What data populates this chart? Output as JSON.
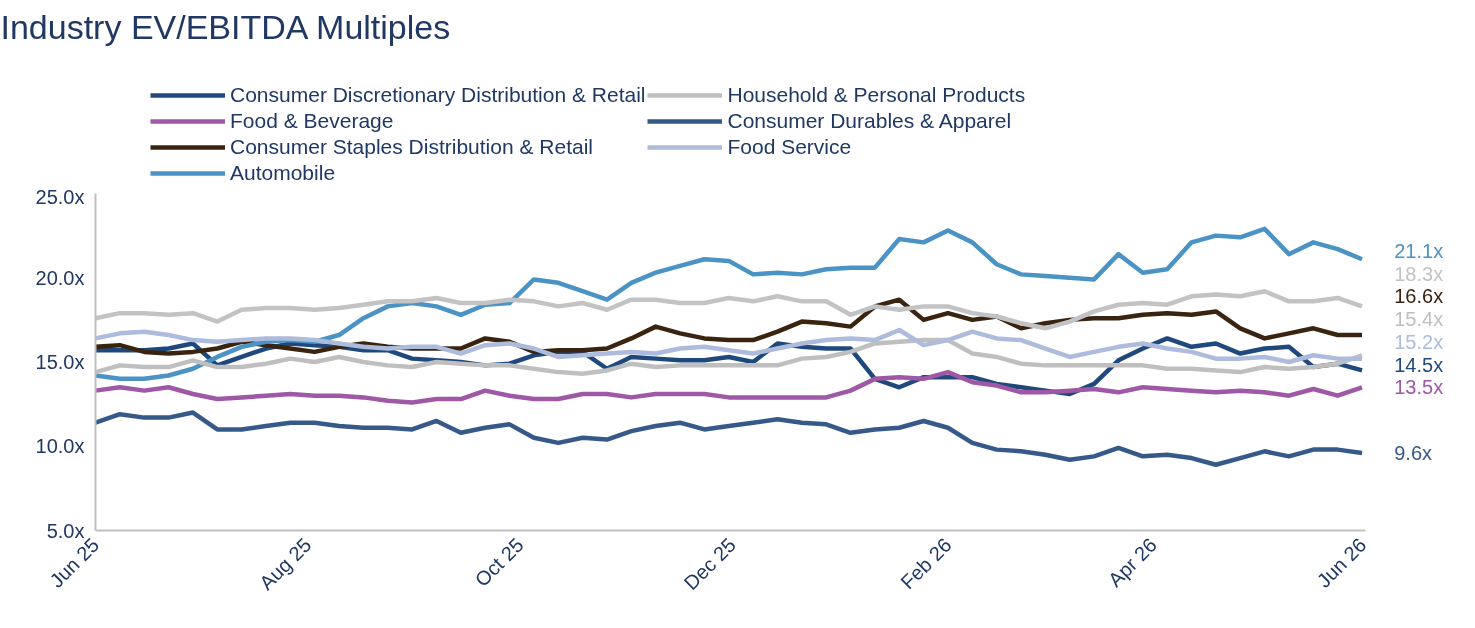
{
  "chart_data": {
    "type": "line",
    "title": "Industry EV/EBITDA Multiples",
    "x": [
      "2025-06-01",
      "2025-06-08",
      "2025-06-15",
      "2025-06-22",
      "2025-06-29",
      "2025-07-06",
      "2025-07-13",
      "2025-07-20",
      "2025-07-27",
      "2025-08-03",
      "2025-08-10",
      "2025-08-17",
      "2025-08-24",
      "2025-08-31",
      "2025-09-07",
      "2025-09-14",
      "2025-09-21",
      "2025-09-28",
      "2025-10-05",
      "2025-10-12",
      "2025-10-19",
      "2025-10-26",
      "2025-11-02",
      "2025-11-09",
      "2025-11-16",
      "2025-11-23",
      "2025-11-30",
      "2025-12-07",
      "2025-12-14",
      "2025-12-21",
      "2025-12-28",
      "2026-01-04",
      "2026-01-11",
      "2026-01-18",
      "2026-01-25",
      "2026-02-01",
      "2026-02-08",
      "2026-02-15",
      "2026-02-22",
      "2026-03-01",
      "2026-03-08",
      "2026-03-15",
      "2026-03-22",
      "2026-03-29",
      "2026-04-05",
      "2026-04-12",
      "2026-04-19",
      "2026-04-26",
      "2026-05-03",
      "2026-05-10",
      "2026-05-17",
      "2026-05-24",
      "2026-05-31"
    ],
    "series": [
      {
        "name": "Consumer Discretionary Distribution & Retail",
        "color": "#1f497d",
        "values": [
          15.7,
          15.7,
          15.7,
          15.8,
          16.1,
          14.8,
          15.3,
          15.8,
          16.1,
          16.0,
          15.9,
          15.7,
          15.7,
          15.2,
          15.1,
          15.0,
          14.8,
          14.9,
          15.4,
          15.6,
          15.6,
          14.6,
          15.3,
          15.2,
          15.1,
          15.1,
          15.3,
          15.0,
          16.1,
          15.9,
          15.8,
          15.8,
          14.0,
          13.5,
          14.1,
          14.1,
          14.1,
          13.7,
          13.5,
          13.3,
          13.1,
          13.7,
          15.1,
          15.8,
          16.4,
          15.9,
          16.1,
          15.5,
          15.8,
          15.9,
          14.7,
          14.9,
          14.5
        ],
        "value_labels": [
          null,
          null,
          null,
          null,
          null,
          null,
          null,
          null,
          null,
          null,
          null,
          null,
          null,
          null,
          null,
          null,
          null,
          null,
          null,
          null,
          null,
          null,
          null,
          null,
          null,
          null,
          null,
          null,
          null,
          null,
          null,
          null,
          null,
          null,
          null,
          null,
          null,
          null,
          null,
          null,
          null,
          null,
          null,
          null,
          null,
          null,
          null,
          null,
          null,
          null,
          null,
          null,
          "14.5x"
        ]
      },
      {
        "name": "Food & Beverage",
        "color": "#9e58a6",
        "values": [
          13.3,
          13.5,
          13.3,
          13.5,
          13.1,
          12.8,
          12.9,
          13.0,
          13.1,
          13.0,
          13.0,
          12.9,
          12.7,
          12.6,
          12.8,
          12.8,
          13.3,
          13.0,
          12.8,
          12.8,
          13.1,
          13.1,
          12.9,
          13.1,
          13.1,
          13.1,
          12.9,
          12.9,
          12.9,
          12.9,
          12.9,
          13.3,
          14.0,
          14.1,
          14.0,
          14.4,
          13.8,
          13.6,
          13.2,
          13.2,
          13.3,
          13.4,
          13.2,
          13.5,
          13.4,
          13.3,
          13.2,
          13.3,
          13.2,
          13.0,
          13.4,
          13.0,
          13.5
        ],
        "value_labels": [
          null,
          null,
          null,
          null,
          null,
          null,
          null,
          null,
          null,
          null,
          null,
          null,
          null,
          null,
          null,
          null,
          null,
          null,
          null,
          null,
          null,
          null,
          null,
          null,
          null,
          null,
          null,
          null,
          null,
          null,
          null,
          null,
          null,
          null,
          null,
          null,
          null,
          null,
          null,
          null,
          null,
          null,
          null,
          null,
          null,
          null,
          null,
          null,
          null,
          null,
          null,
          null,
          "13.5x"
        ]
      },
      {
        "name": "Consumer Staples Distribution & Retail",
        "color": "#3a2410",
        "values": [
          15.9,
          16.0,
          15.6,
          15.5,
          15.6,
          15.8,
          16.2,
          16.0,
          15.8,
          15.6,
          15.9,
          16.1,
          15.9,
          15.8,
          15.8,
          15.8,
          16.4,
          16.2,
          15.6,
          15.7,
          15.7,
          15.8,
          16.4,
          17.1,
          16.7,
          16.4,
          16.3,
          16.3,
          16.8,
          17.4,
          17.3,
          17.1,
          18.3,
          18.7,
          17.5,
          17.9,
          17.5,
          17.7,
          17.0,
          17.3,
          17.5,
          17.6,
          17.6,
          17.8,
          17.9,
          17.8,
          18.0,
          17.0,
          16.4,
          16.7,
          17.0,
          16.6,
          16.6
        ],
        "value_labels": [
          null,
          null,
          null,
          null,
          null,
          null,
          null,
          null,
          null,
          null,
          null,
          null,
          null,
          null,
          null,
          null,
          null,
          null,
          null,
          null,
          null,
          null,
          null,
          null,
          null,
          null,
          null,
          null,
          null,
          null,
          null,
          null,
          null,
          null,
          null,
          null,
          null,
          null,
          null,
          null,
          null,
          null,
          null,
          null,
          null,
          null,
          null,
          null,
          null,
          null,
          null,
          null,
          "16.6x"
        ]
      },
      {
        "name": "Automobile",
        "color": "#4a93c4",
        "values": [
          14.2,
          14.0,
          14.0,
          14.2,
          14.6,
          15.3,
          15.9,
          16.2,
          16.3,
          16.2,
          16.6,
          17.6,
          18.3,
          18.5,
          18.3,
          17.8,
          18.4,
          18.5,
          19.9,
          19.7,
          19.2,
          18.7,
          19.7,
          20.3,
          20.7,
          21.1,
          21.0,
          20.2,
          20.3,
          20.2,
          20.5,
          20.6,
          20.6,
          22.3,
          22.1,
          22.8,
          22.1,
          20.8,
          20.2,
          20.1,
          20.0,
          19.9,
          21.4,
          20.3,
          20.5,
          22.1,
          22.5,
          22.4,
          22.9,
          21.4,
          22.1,
          21.7,
          21.1
        ],
        "value_labels": [
          null,
          null,
          null,
          null,
          null,
          null,
          null,
          null,
          null,
          null,
          null,
          null,
          null,
          null,
          null,
          null,
          null,
          null,
          null,
          null,
          null,
          null,
          null,
          null,
          null,
          null,
          null,
          null,
          null,
          null,
          null,
          null,
          null,
          null,
          null,
          null,
          null,
          null,
          null,
          null,
          null,
          null,
          null,
          null,
          null,
          null,
          null,
          null,
          null,
          null,
          null,
          null,
          "21.1x"
        ]
      },
      {
        "name": "Household & Personal Products",
        "color": "#bfbfbf",
        "values": [
          14.4,
          14.8,
          14.7,
          14.7,
          15.1,
          14.7,
          14.7,
          14.9,
          15.2,
          15.0,
          15.3,
          15.0,
          14.8,
          14.7,
          15.0,
          14.9,
          14.8,
          14.8,
          14.6,
          14.4,
          14.3,
          14.5,
          14.9,
          14.7,
          14.8,
          14.8,
          14.8,
          14.8,
          14.8,
          15.2,
          15.3,
          15.6,
          16.1,
          16.2,
          16.3,
          16.3,
          15.5,
          15.3,
          14.9,
          14.8,
          14.8,
          14.8,
          14.8,
          14.8,
          14.6,
          14.6,
          14.5,
          14.4,
          14.7,
          14.6,
          14.7,
          14.9,
          15.4
        ],
        "value_labels": [
          null,
          null,
          null,
          null,
          null,
          null,
          null,
          null,
          null,
          null,
          null,
          null,
          null,
          null,
          null,
          null,
          null,
          null,
          null,
          null,
          null,
          null,
          null,
          null,
          null,
          null,
          null,
          null,
          null,
          null,
          null,
          null,
          null,
          null,
          null,
          null,
          null,
          null,
          null,
          null,
          null,
          null,
          null,
          null,
          null,
          null,
          null,
          null,
          null,
          null,
          null,
          null,
          "15.4x"
        ]
      },
      {
        "name": "Consumer Durables & Apparel",
        "color": "#36598a",
        "values": [
          11.4,
          11.9,
          11.7,
          11.7,
          12.0,
          11.0,
          11.0,
          11.2,
          11.4,
          11.4,
          11.2,
          11.1,
          11.1,
          11.0,
          11.5,
          10.8,
          11.1,
          11.3,
          10.5,
          10.2,
          10.5,
          10.4,
          10.9,
          11.2,
          11.4,
          11.0,
          11.2,
          11.4,
          11.6,
          11.4,
          11.3,
          10.8,
          11.0,
          11.1,
          11.5,
          11.1,
          10.2,
          9.8,
          9.7,
          9.5,
          9.2,
          9.4,
          9.9,
          9.4,
          9.5,
          9.3,
          8.9,
          9.3,
          9.7,
          9.4,
          9.8,
          9.8,
          9.6
        ],
        "value_labels": [
          null,
          null,
          null,
          null,
          null,
          null,
          null,
          null,
          null,
          null,
          null,
          null,
          null,
          null,
          null,
          null,
          null,
          null,
          null,
          null,
          null,
          null,
          null,
          null,
          null,
          null,
          null,
          null,
          null,
          null,
          null,
          null,
          null,
          null,
          null,
          null,
          null,
          null,
          null,
          null,
          null,
          null,
          null,
          null,
          null,
          null,
          null,
          null,
          null,
          null,
          null,
          null,
          "9.6x"
        ]
      },
      {
        "name": "Food Service",
        "color": "#adbcdc",
        "values": [
          16.4,
          16.7,
          16.8,
          16.6,
          16.3,
          16.2,
          16.3,
          16.4,
          16.4,
          16.3,
          16.1,
          15.9,
          15.8,
          15.9,
          15.9,
          15.5,
          16.0,
          16.1,
          15.8,
          15.3,
          15.4,
          15.5,
          15.6,
          15.5,
          15.8,
          15.9,
          15.7,
          15.5,
          15.8,
          16.1,
          16.3,
          16.4,
          16.3,
          16.9,
          16.0,
          16.3,
          16.8,
          16.4,
          16.3,
          15.8,
          15.3,
          15.6,
          15.9,
          16.1,
          15.8,
          15.6,
          15.2,
          15.2,
          15.3,
          15.0,
          15.4,
          15.2,
          15.2
        ],
        "value_labels": [
          null,
          null,
          null,
          null,
          null,
          null,
          null,
          null,
          null,
          null,
          null,
          null,
          null,
          null,
          null,
          null,
          null,
          null,
          null,
          null,
          null,
          null,
          null,
          null,
          null,
          null,
          null,
          null,
          null,
          null,
          null,
          null,
          null,
          null,
          null,
          null,
          null,
          null,
          null,
          null,
          null,
          null,
          null,
          null,
          null,
          null,
          null,
          null,
          null,
          null,
          null,
          null,
          "15.2x"
        ]
      },
      {
        "color": "#c3c3c6",
        "values": [
          17.6,
          17.9,
          17.9,
          17.8,
          17.9,
          17.4,
          18.1,
          18.2,
          18.2,
          18.1,
          18.2,
          18.4,
          18.6,
          18.6,
          18.8,
          18.5,
          18.5,
          18.7,
          18.6,
          18.3,
          18.5,
          18.1,
          18.7,
          18.7,
          18.5,
          18.5,
          18.8,
          18.6,
          18.9,
          18.6,
          18.6,
          17.8,
          18.3,
          18.1,
          18.3,
          18.3,
          17.9,
          17.7,
          17.3,
          17.0,
          17.4,
          18.0,
          18.4,
          18.5,
          18.4,
          18.9,
          19.0,
          18.9,
          19.2,
          18.6,
          18.6,
          18.8,
          18.3
        ],
        "value_labels": [
          null,
          null,
          null,
          null,
          null,
          null,
          null,
          null,
          null,
          null,
          null,
          null,
          null,
          null,
          null,
          null,
          null,
          null,
          null,
          null,
          null,
          null,
          null,
          null,
          null,
          null,
          null,
          null,
          null,
          null,
          null,
          null,
          null,
          null,
          null,
          null,
          null,
          null,
          null,
          null,
          null,
          null,
          null,
          null,
          null,
          null,
          null,
          null,
          null,
          null,
          null,
          null,
          "18.3x"
        ]
      }
    ],
    "xlim": [
      "2025-06-01",
      "2026-06-01"
    ],
    "xticks": [
      {
        "value": "2025-06-01",
        "label": "Jun 25"
      },
      {
        "value": "2025-08-01",
        "label": "Aug 25"
      },
      {
        "value": "2025-10-01",
        "label": "Oct 25"
      },
      {
        "value": "2025-12-01",
        "label": "Dec 25"
      },
      {
        "value": "2026-02-01",
        "label": "Feb 26"
      },
      {
        "value": "2026-04-01",
        "label": "Apr 26"
      },
      {
        "value": "2026-06-01",
        "label": "Jun 26"
      }
    ],
    "ylim": [
      5,
      25
    ],
    "yticks": [
      {
        "value": 5,
        "label": "5.0x"
      },
      {
        "value": 10,
        "label": "10.0x"
      },
      {
        "value": 15,
        "label": "15.0x"
      },
      {
        "value": 20,
        "label": "20.0x"
      },
      {
        "value": 25,
        "label": "25.0x"
      }
    ],
    "legend": "top",
    "marker": "none",
    "line_style": "solid"
  }
}
